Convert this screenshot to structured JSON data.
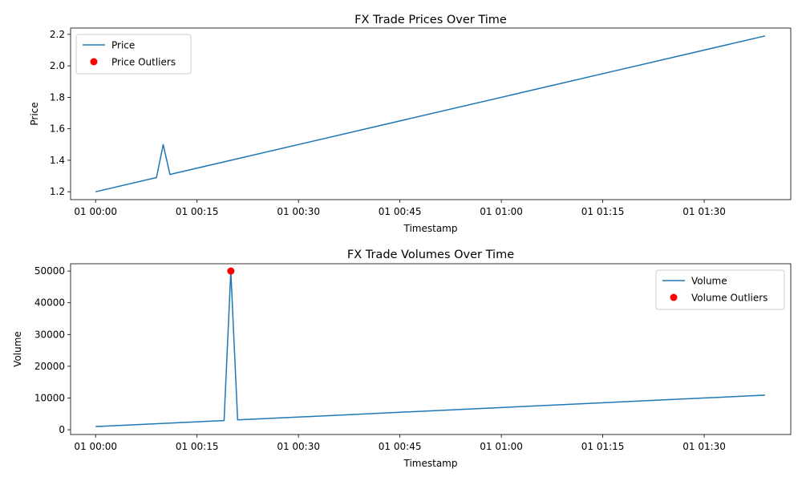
{
  "figure": {
    "background": "#ffffff"
  },
  "chart_data": [
    {
      "type": "line",
      "title": "FX Trade Prices Over Time",
      "xlabel": "Timestamp",
      "ylabel": "Price",
      "x_ticks": [
        "01 00:00",
        "01 00:15",
        "01 00:30",
        "01 00:45",
        "01 01:00",
        "01 01:15",
        "01 01:30"
      ],
      "y_ticks": [
        "1.2",
        "1.4",
        "1.6",
        "1.8",
        "2.0",
        "2.2"
      ],
      "ylim": [
        1.15,
        2.24
      ],
      "legend_position": "upper-left",
      "grid": false,
      "x_unit": "minutes after 01 00:00",
      "series": [
        {
          "name": "Price",
          "kind": "line",
          "color": "#1f77b4",
          "x": [
            0,
            9,
            10,
            11,
            99
          ],
          "y": [
            1.2,
            1.29,
            1.5,
            1.31,
            2.19
          ]
        },
        {
          "name": "Price Outliers",
          "kind": "scatter",
          "color": "#ff0000",
          "x": [],
          "y": []
        }
      ]
    },
    {
      "type": "line",
      "title": "FX Trade Volumes Over Time",
      "xlabel": "Timestamp",
      "ylabel": "Volume",
      "x_ticks": [
        "01 00:00",
        "01 00:15",
        "01 00:30",
        "01 00:45",
        "01 01:00",
        "01 01:15",
        "01 01:30"
      ],
      "y_ticks": [
        "0",
        "10000",
        "20000",
        "30000",
        "40000",
        "50000"
      ],
      "ylim": [
        -1500,
        52300
      ],
      "legend_position": "upper-right",
      "grid": false,
      "x_unit": "minutes after 01 00:00",
      "series": [
        {
          "name": "Volume",
          "kind": "line",
          "color": "#1f77b4",
          "x": [
            0,
            19,
            20,
            21,
            99
          ],
          "y": [
            1000,
            2900,
            50000,
            3100,
            10900
          ]
        },
        {
          "name": "Volume Outliers",
          "kind": "scatter",
          "color": "#ff0000",
          "x": [
            20
          ],
          "y": [
            50000
          ]
        }
      ]
    }
  ]
}
